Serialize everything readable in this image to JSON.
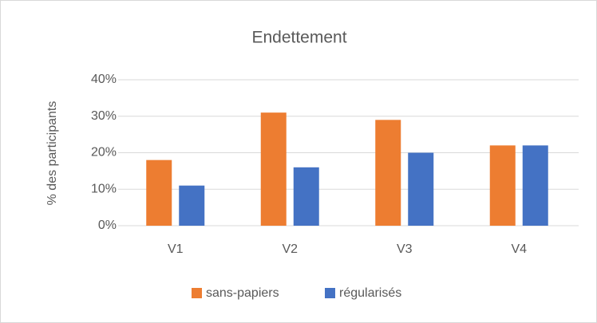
{
  "chart_data": {
    "type": "bar",
    "title": "Endettement",
    "y_label": "% des participants",
    "categories": [
      "V1",
      "V2",
      "V3",
      "V4"
    ],
    "series": [
      {
        "name": "sans-papiers",
        "color": "#ed7d31",
        "values": [
          18,
          31,
          29,
          22
        ]
      },
      {
        "name": "régularisés",
        "color": "#4472c4",
        "values": [
          11,
          16,
          20,
          22
        ]
      }
    ],
    "ylim": [
      0,
      40
    ],
    "yticks": [
      {
        "value": 0,
        "label": "0%"
      },
      {
        "value": 10,
        "label": "10%"
      },
      {
        "value": 20,
        "label": "20%"
      },
      {
        "value": 30,
        "label": "30%"
      },
      {
        "value": 40,
        "label": "40%"
      }
    ],
    "grid": true,
    "legend": "bottom"
  }
}
